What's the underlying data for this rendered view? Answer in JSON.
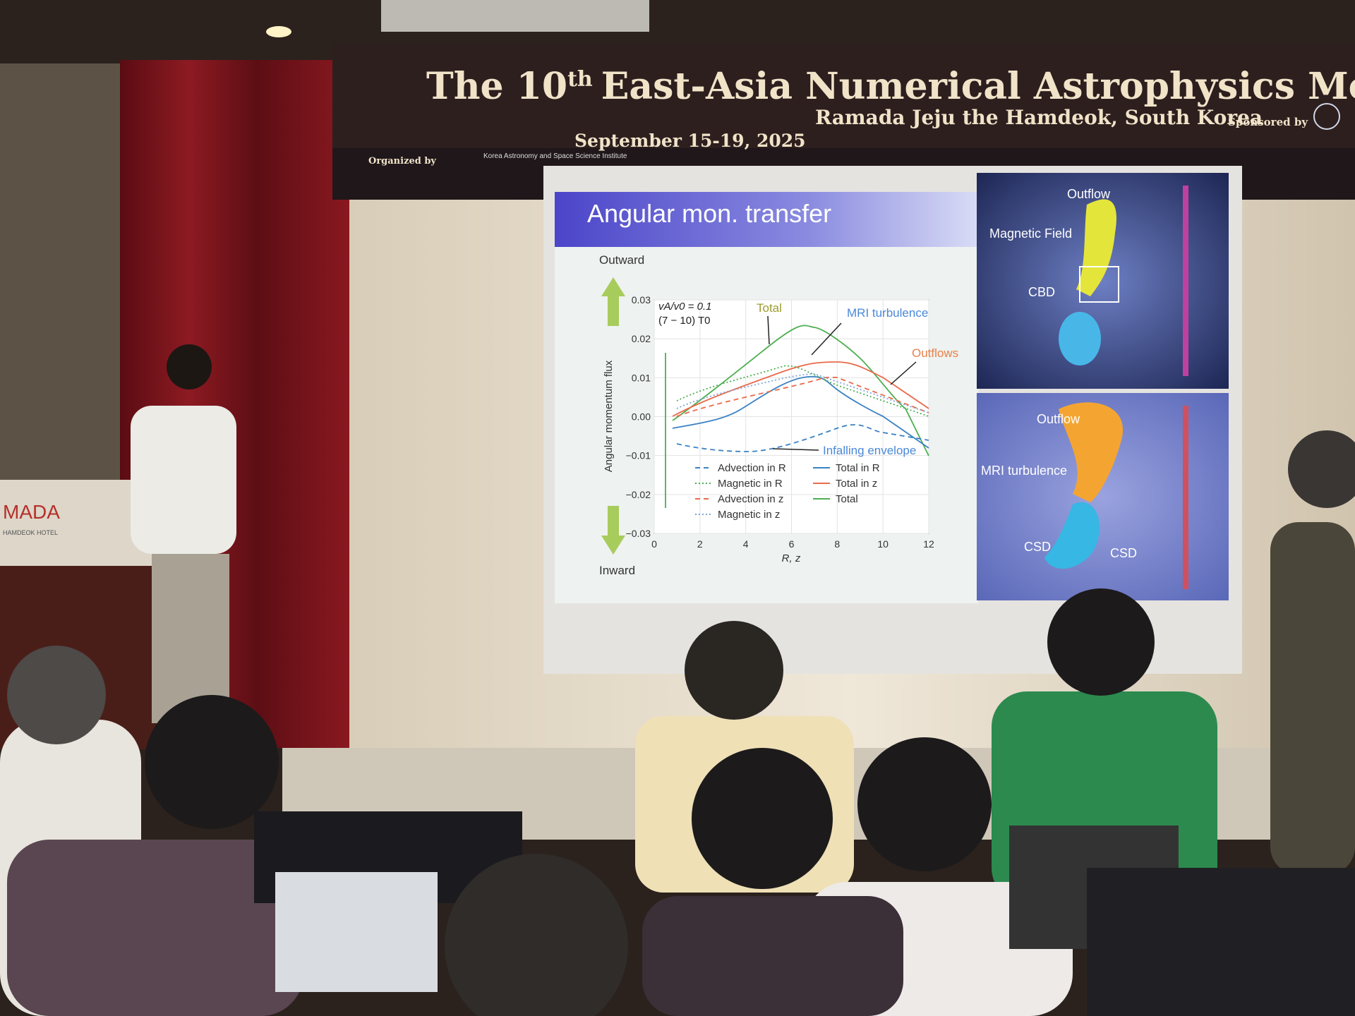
{
  "banner": {
    "title_lead": "The 10",
    "title_ordinal": "th",
    "title_rest": "East-Asia Numerical Astrophysics Meeting",
    "dates": "September 15-19, 2025",
    "venue": "Ramada Jeju the Hamdeok, South Korea",
    "sponsor": "Sponsored by",
    "organizer": "Organized by",
    "organizer_name": "Korea Astronomy and Space Science Institute"
  },
  "podium": {
    "brand": "MADA",
    "hotel": "HAMDEOK HOTEL"
  },
  "slide": {
    "title": "Angular mon. transfer",
    "outward": "Outward",
    "inward": "Inward",
    "plot": {
      "y_label": "Angular momentum flux",
      "x_label": "R, z",
      "params": [
        "vA/v0 = 0.1",
        "(7 − 10) T0"
      ],
      "x_tick_labels": [
        "0",
        "2",
        "4",
        "6",
        "8",
        "10",
        "12"
      ],
      "y_tick_labels": [
        "0.03",
        "0.02",
        "0.01",
        "0.00",
        "−0.01",
        "−0.02",
        "−0.03"
      ],
      "legend": [
        "Advection in R",
        "Magnetic in R",
        "Advection in z",
        "Magnetic in z",
        "Total in R",
        "Total in z",
        "Total"
      ],
      "annotations": [
        "Total",
        "MRI turbulence",
        "Outflows",
        "Infalling envelope"
      ]
    },
    "top_panel": [
      "Outflow",
      "Magnetic Field",
      "CBD"
    ],
    "bottom_panel": [
      "Outflow",
      "MRI turbulence",
      "CSD",
      "CSD"
    ]
  }
}
